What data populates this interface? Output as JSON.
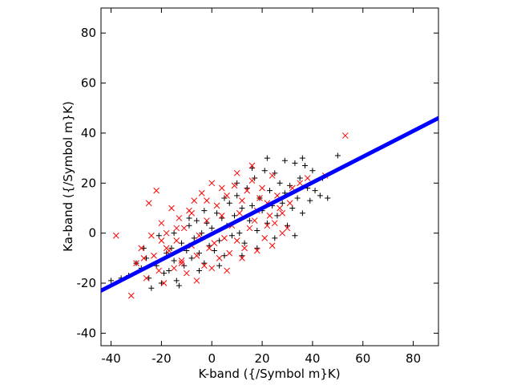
{
  "chart_data": {
    "type": "scatter",
    "title": "",
    "xlabel": "K-band ({/Symbol m}K)",
    "ylabel": "Ka-band ({/Symbol m}K)",
    "xlim": [
      -44,
      90
    ],
    "ylim": [
      -45,
      90
    ],
    "xticks": [
      -40,
      -20,
      0,
      20,
      40,
      60,
      80
    ],
    "yticks": [
      -40,
      -20,
      0,
      20,
      40,
      60,
      80
    ],
    "xtick_labels": [
      "-40",
      "-20",
      "0",
      "20",
      "40",
      "60",
      "80"
    ],
    "ytick_labels": [
      "-40",
      "-20",
      "0",
      "20",
      "40",
      "60",
      "80"
    ],
    "grid": false,
    "legend": "none",
    "series": [
      {
        "marker": "plus",
        "color": "#000000",
        "x": [
          -40,
          -36,
          -33,
          -30,
          -28,
          -26,
          -24,
          -22,
          -20,
          -18,
          -17,
          -16,
          -15,
          -14,
          -12,
          -11,
          -10,
          -9,
          -8,
          -7,
          -6,
          -5,
          -4,
          -3,
          -2,
          -1,
          0,
          1,
          2,
          3,
          4,
          5,
          6,
          7,
          8,
          9,
          10,
          11,
          12,
          13,
          14,
          15,
          16,
          17,
          18,
          19,
          20,
          21,
          22,
          23,
          24,
          25,
          26,
          27,
          28,
          29,
          30,
          31,
          32,
          33,
          34,
          35,
          36,
          37,
          38,
          39,
          40,
          41,
          43,
          46,
          50,
          -25,
          -19,
          -13,
          -5,
          3,
          12,
          18,
          25,
          33,
          -27,
          -21,
          -15,
          -9,
          -3,
          5,
          10,
          16,
          22,
          29,
          36,
          44
        ],
        "y": [
          -19,
          -18,
          -17,
          -12,
          -14,
          -10,
          -22,
          -13,
          -20,
          -8,
          -15,
          -6,
          -11,
          -19,
          -4,
          -13,
          -7,
          3,
          -10,
          -2,
          5,
          -8,
          0,
          -12,
          4,
          -5,
          2,
          -7,
          8,
          -3,
          6,
          -9,
          3,
          12,
          -1,
          7,
          15,
          0,
          10,
          -4,
          18,
          5,
          11,
          22,
          1,
          14,
          9,
          25,
          4,
          17,
          11,
          24,
          7,
          20,
          12,
          16,
          3,
          19,
          10,
          28,
          14,
          22,
          8,
          27,
          18,
          13,
          25,
          17,
          15,
          14,
          31,
          -18,
          -16,
          -21,
          -15,
          -13,
          -9,
          -6,
          -2,
          -1,
          -6,
          -1,
          0,
          6,
          9,
          14,
          20,
          26,
          30,
          29,
          30,
          22
        ]
      },
      {
        "marker": "x",
        "color": "#ff0000",
        "x": [
          -38,
          -32,
          -30,
          -28,
          -26,
          -25,
          -23,
          -22,
          -21,
          -20,
          -19,
          -18,
          -17,
          -16,
          -15,
          -14,
          -13,
          -12,
          -11,
          -10,
          -9,
          -8,
          -7,
          -6,
          -5,
          -4,
          -3,
          -2,
          -1,
          0,
          1,
          2,
          3,
          4,
          5,
          6,
          7,
          8,
          9,
          10,
          11,
          12,
          13,
          14,
          15,
          16,
          17,
          18,
          19,
          20,
          21,
          22,
          23,
          24,
          25,
          26,
          27,
          28,
          30,
          32,
          35,
          38,
          45,
          53,
          -24,
          -18,
          -12,
          -6,
          0,
          6,
          12,
          18,
          24,
          -27,
          -20,
          -14,
          -8,
          -2,
          4,
          10,
          16,
          22,
          28,
          31
        ],
        "y": [
          -1,
          -25,
          -12,
          -6,
          -18,
          12,
          -9,
          17,
          -15,
          4,
          -20,
          0,
          -7,
          10,
          -14,
          -3,
          6,
          -11,
          2,
          -16,
          9,
          -5,
          13,
          -9,
          -1,
          16,
          -13,
          5,
          -6,
          20,
          -4,
          11,
          -10,
          7,
          -2,
          15,
          -8,
          3,
          19,
          -3,
          8,
          13,
          -6,
          17,
          2,
          21,
          5,
          9,
          14,
          18,
          -2,
          12,
          7,
          23,
          4,
          15,
          10,
          8,
          2,
          18,
          20,
          22,
          23,
          39,
          -1,
          -6,
          -12,
          -19,
          -14,
          -15,
          -10,
          -7,
          -5,
          -10,
          -3,
          2,
          8,
          13,
          18,
          24,
          27,
          3,
          0,
          12
        ]
      },
      {
        "marker": "line",
        "color": "#0000ff",
        "x": [
          -44,
          90
        ],
        "y": [
          -23,
          46
        ]
      }
    ]
  }
}
